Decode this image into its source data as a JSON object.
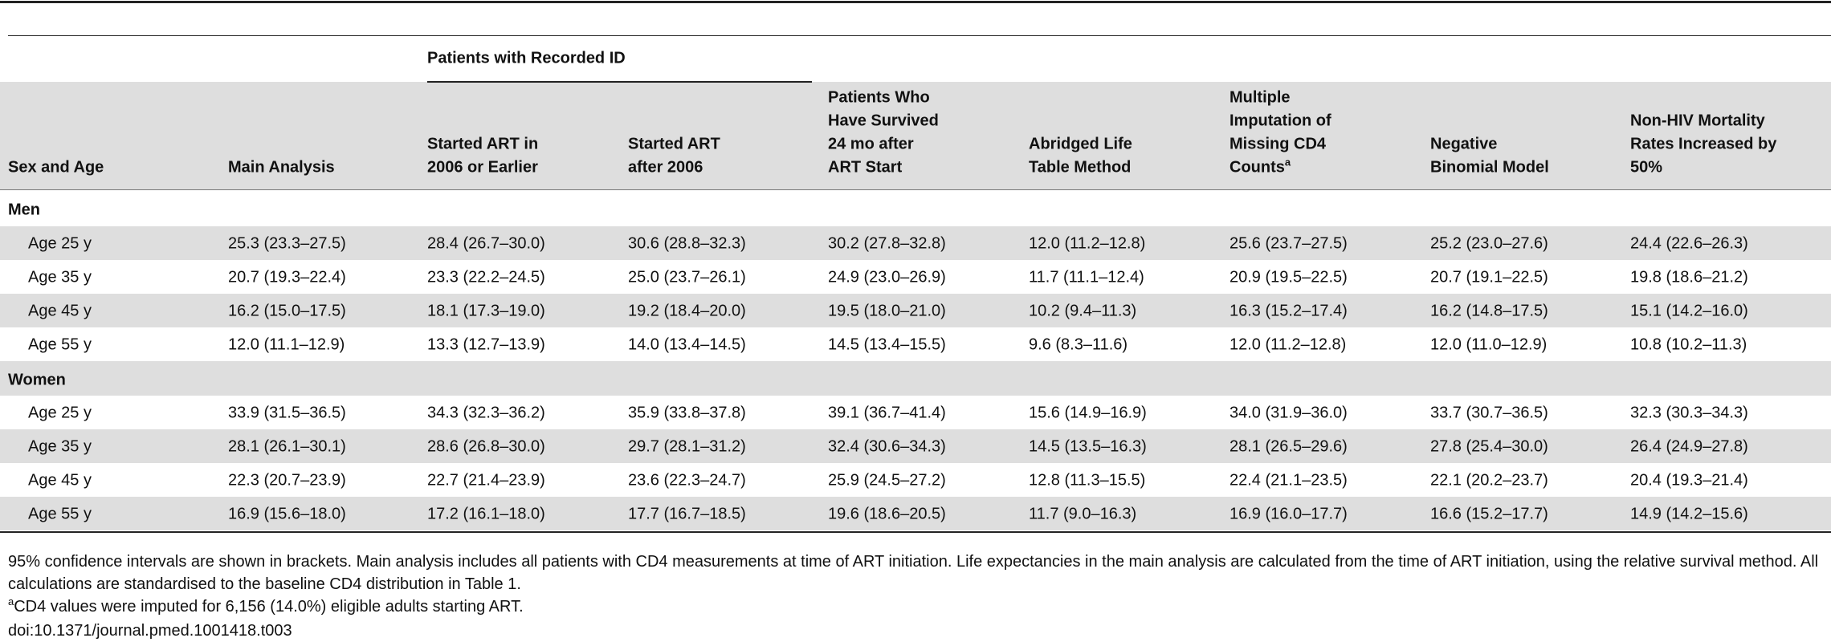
{
  "table": {
    "group_header": "Patients with Recorded ID",
    "columns": [
      {
        "lines": [
          "Sex and Age"
        ]
      },
      {
        "lines": [
          "Main Analysis"
        ]
      },
      {
        "lines": [
          "Started ART in",
          "2006 or Earlier"
        ]
      },
      {
        "lines": [
          "Started ART",
          "after 2006"
        ]
      },
      {
        "lines": [
          "Patients Who",
          "Have Survived",
          "24 mo after",
          "ART Start"
        ]
      },
      {
        "lines": [
          "Abridged Life",
          "Table Method"
        ]
      },
      {
        "lines": [
          "Multiple",
          "Imputation of",
          "Missing CD4",
          "Counts"
        ],
        "note": "a"
      },
      {
        "lines": [
          "Negative",
          "Binomial Model"
        ]
      },
      {
        "lines": [
          "Non-HIV Mortality",
          "Rates Increased by",
          "50%"
        ]
      }
    ],
    "sections": [
      {
        "label": "Men",
        "rows": [
          [
            "Age 25 y",
            "25.3 (23.3–27.5)",
            "28.4 (26.7–30.0)",
            "30.6 (28.8–32.3)",
            "30.2 (27.8–32.8)",
            "12.0 (11.2–12.8)",
            "25.6 (23.7–27.5)",
            "25.2 (23.0–27.6)",
            "24.4 (22.6–26.3)"
          ],
          [
            "Age 35 y",
            "20.7 (19.3–22.4)",
            "23.3 (22.2–24.5)",
            "25.0 (23.7–26.1)",
            "24.9 (23.0–26.9)",
            "11.7 (11.1–12.4)",
            "20.9 (19.5–22.5)",
            "20.7 (19.1–22.5)",
            "19.8 (18.6–21.2)"
          ],
          [
            "Age 45 y",
            "16.2 (15.0–17.5)",
            "18.1 (17.3–19.0)",
            "19.2 (18.4–20.0)",
            "19.5 (18.0–21.0)",
            "10.2 (9.4–11.3)",
            "16.3 (15.2–17.4)",
            "16.2 (14.8–17.5)",
            "15.1 (14.2–16.0)"
          ],
          [
            "Age 55 y",
            "12.0 (11.1–12.9)",
            "13.3 (12.7–13.9)",
            "14.0 (13.4–14.5)",
            "14.5 (13.4–15.5)",
            "9.6 (8.3–11.6)",
            "12.0 (11.2–12.8)",
            "12.0 (11.0–12.9)",
            "10.8 (10.2–11.3)"
          ]
        ]
      },
      {
        "label": "Women",
        "rows": [
          [
            "Age 25 y",
            "33.9 (31.5–36.5)",
            "34.3 (32.3–36.2)",
            "35.9 (33.8–37.8)",
            "39.1 (36.7–41.4)",
            "15.6 (14.9–16.9)",
            "34.0 (31.9–36.0)",
            "33.7 (30.7–36.5)",
            "32.3 (30.3–34.3)"
          ],
          [
            "Age 35 y",
            "28.1 (26.1–30.1)",
            "28.6 (26.8–30.0)",
            "29.7 (28.1–31.2)",
            "32.4 (30.6–34.3)",
            "14.5 (13.5–16.3)",
            "28.1 (26.5–29.6)",
            "27.8 (25.4–30.0)",
            "26.4 (24.9–27.8)"
          ],
          [
            "Age 45 y",
            "22.3 (20.7–23.9)",
            "22.7 (21.4–23.9)",
            "23.6 (22.3–24.7)",
            "25.9 (24.5–27.2)",
            "12.8 (11.3–15.5)",
            "22.4 (21.1–23.5)",
            "22.1 (20.2–23.7)",
            "20.4 (19.3–21.4)"
          ],
          [
            "Age 55 y",
            "16.9 (15.6–18.0)",
            "17.2 (16.1–18.0)",
            "17.7 (16.7–18.5)",
            "19.6 (18.6–20.5)",
            "11.7 (9.0–16.3)",
            "16.9 (16.0–17.7)",
            "16.6 (15.2–17.7)",
            "14.9 (14.2–15.6)"
          ]
        ]
      }
    ]
  },
  "footnotes": {
    "description": "95% confidence intervals are shown in brackets. Main analysis includes all patients with CD4 measurements at time of ART initiation. Life expectancies in the main analysis are calculated from the time of ART initiation, using the relative survival method. All calculations are standardised to the baseline CD4 distribution in Table 1.",
    "note": {
      "mark": "a",
      "text": "CD4 values were imputed for 6,156 (14.0%) eligible adults starting ART."
    },
    "doi": "doi:10.1371/journal.pmed.1001418.t003"
  }
}
